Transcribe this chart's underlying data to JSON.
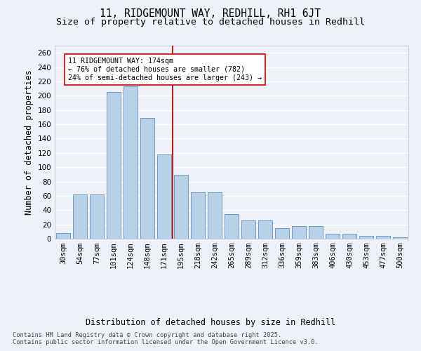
{
  "title_line1": "11, RIDGEMOUNT WAY, REDHILL, RH1 6JT",
  "title_line2": "Size of property relative to detached houses in Redhill",
  "xlabel": "Distribution of detached houses by size in Redhill",
  "ylabel": "Number of detached properties",
  "categories": [
    "30sqm",
    "54sqm",
    "77sqm",
    "101sqm",
    "124sqm",
    "148sqm",
    "171sqm",
    "195sqm",
    "218sqm",
    "242sqm",
    "265sqm",
    "289sqm",
    "312sqm",
    "336sqm",
    "359sqm",
    "383sqm",
    "406sqm",
    "430sqm",
    "453sqm",
    "477sqm",
    "500sqm"
  ],
  "values": [
    8,
    62,
    62,
    205,
    213,
    169,
    118,
    89,
    65,
    65,
    34,
    26,
    26,
    15,
    18,
    18,
    7,
    7,
    4,
    4,
    2
  ],
  "bar_color": "#b8d0e8",
  "bar_edge_color": "#5a8fc0",
  "annotation_text": "11 RIDGEMOUNT WAY: 174sqm\n← 76% of detached houses are smaller (782)\n24% of semi-detached houses are larger (243) →",
  "vline_x_idx": 6.5,
  "vline_color": "#cc0000",
  "annotation_box_edgecolor": "#cc0000",
  "annotation_box_facecolor": "white",
  "footer_text": "Contains HM Land Registry data © Crown copyright and database right 2025.\nContains public sector information licensed under the Open Government Licence v3.0.",
  "background_color": "#eef2f8",
  "ylim": [
    0,
    270
  ],
  "yticks": [
    0,
    20,
    40,
    60,
    80,
    100,
    120,
    140,
    160,
    180,
    200,
    220,
    240,
    260
  ],
  "grid_color": "#ffffff",
  "title_fontsize": 10.5,
  "subtitle_fontsize": 9.5,
  "axis_label_fontsize": 8.5,
  "tick_fontsize": 7.5,
  "footer_fontsize": 6.2
}
